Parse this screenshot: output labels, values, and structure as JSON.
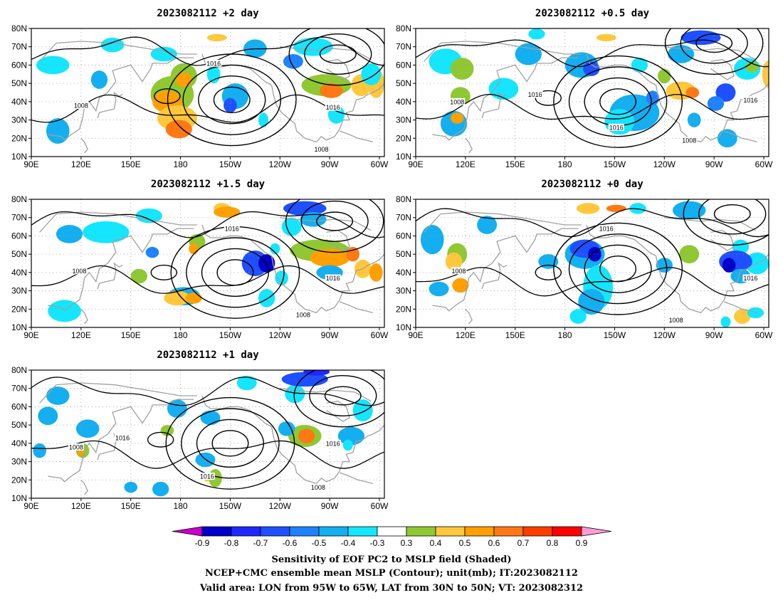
{
  "panels": [
    {
      "title": "2023082112 +2 day",
      "contours": [
        {
          "label": "1016",
          "lon": 200,
          "lat": 61
        },
        {
          "label": "1016",
          "lon": 272,
          "lat": 37
        },
        {
          "label": "1008",
          "lon": 120,
          "lat": 38
        },
        {
          "label": "1008",
          "lon": 265,
          "lat": 14
        }
      ]
    },
    {
      "title": "2023082112 +0.5 day",
      "contours": [
        {
          "label": "1016",
          "lon": 162,
          "lat": 44
        },
        {
          "label": "1016",
          "lon": 292,
          "lat": 41
        },
        {
          "label": "1016",
          "lon": 211,
          "lat": 26
        },
        {
          "label": "1008",
          "lon": 115,
          "lat": 40
        },
        {
          "label": "1008",
          "lon": 255,
          "lat": 19
        }
      ]
    },
    {
      "title": "2023082112 +1.5 day",
      "contours": [
        {
          "label": "1016",
          "lon": 211,
          "lat": 64
        },
        {
          "label": "1016",
          "lon": 272,
          "lat": 37
        },
        {
          "label": "1008",
          "lon": 119,
          "lat": 41
        },
        {
          "label": "1008",
          "lon": 254,
          "lat": 17
        }
      ]
    },
    {
      "title": "2023082112 +0 day",
      "contours": [
        {
          "label": "1016",
          "lon": 205,
          "lat": 64
        },
        {
          "label": "1016",
          "lon": 292,
          "lat": 37
        },
        {
          "label": "1008",
          "lon": 116,
          "lat": 41
        },
        {
          "label": "1008",
          "lon": 247,
          "lat": 14
        }
      ]
    },
    {
      "title": "2023082112 +1 day",
      "contours": [
        {
          "label": "1016",
          "lon": 145,
          "lat": 43
        },
        {
          "label": "1016",
          "lon": 272,
          "lat": 40
        },
        {
          "label": "1016",
          "lon": 196,
          "lat": 22
        },
        {
          "label": "1008",
          "lon": 117,
          "lat": 38
        },
        {
          "label": "1008",
          "lon": 263,
          "lat": 16
        }
      ]
    }
  ],
  "axes": {
    "lat_labels": [
      "80N",
      "70N",
      "60N",
      "50N",
      "40N",
      "30N",
      "20N",
      "10N"
    ],
    "lon_labels": [
      "90E",
      "120E",
      "150E",
      "180",
      "150W",
      "120W",
      "90W",
      "60W"
    ]
  },
  "colorbar": {
    "ticks": [
      "-0.9",
      "-0.8",
      "-0.7",
      "-0.6",
      "-0.5",
      "-0.4",
      "-0.3",
      "0.3",
      "0.4",
      "0.5",
      "0.6",
      "0.7",
      "0.8",
      "0.9"
    ],
    "colors": [
      "#0000c8",
      "#1e28ff",
      "#1e50ff",
      "#1e82ff",
      "#14aff0",
      "#14e6ff",
      "#ffffff",
      "#8fc832",
      "#ffc83c",
      "#ffa000",
      "#ff7814",
      "#ff3c00",
      "#ff0000"
    ],
    "under_color": "#c800c8",
    "over_color": "#ff9bd7"
  },
  "footer": {
    "line1": "Sensitivity of EOF PC2 to MSLP field (Shaded)",
    "line2": "NCEP+CMC ensemble mean MSLP (Contour); unit(mb); IT:2023082112",
    "line3": "Valid area: LON from 95W to 65W, LAT from 30N to 50N; VT: 2023082312"
  }
}
